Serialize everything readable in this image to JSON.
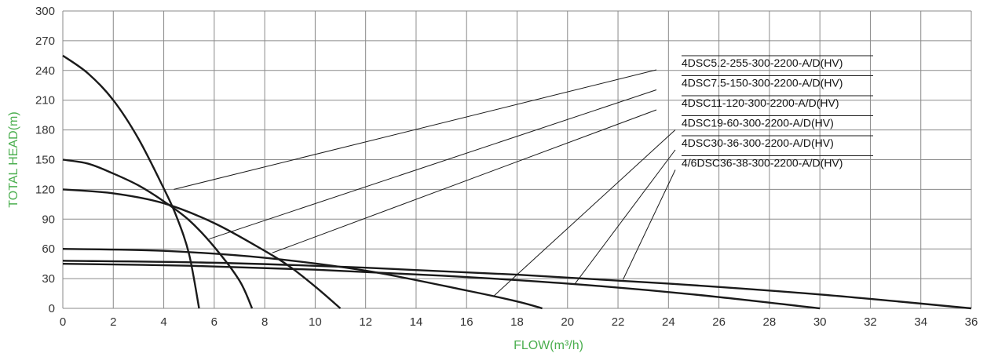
{
  "chart_data": {
    "type": "line",
    "title": "",
    "xlabel": "FLOW(m³/h)",
    "ylabel": "TOTAL HEAD(m)",
    "xlim": [
      0,
      36
    ],
    "ylim": [
      0,
      300
    ],
    "xticks": [
      0,
      2,
      4,
      6,
      8,
      10,
      12,
      14,
      16,
      18,
      20,
      22,
      24,
      26,
      28,
      30,
      32,
      34,
      36
    ],
    "yticks": [
      0,
      30,
      60,
      90,
      120,
      150,
      180,
      210,
      240,
      270,
      300
    ],
    "grid": true,
    "legend_placement": "top-right",
    "axis_label_color": "#4caf50",
    "line_color": "#1a1a1a",
    "series": [
      {
        "name": "4DSC5.2-255-300-2200-A/D(HV)",
        "x": [
          0,
          1,
          2,
          3,
          4,
          4.5,
          5,
          5.4
        ],
        "y": [
          255,
          237,
          210,
          171,
          121,
          93,
          55,
          0
        ],
        "label_at": [
          4.4,
          120
        ]
      },
      {
        "name": "4DSC7.5-150-300-2200-A/D(HV)",
        "x": [
          0,
          1,
          2,
          3,
          4,
          5,
          6,
          7,
          7.5
        ],
        "y": [
          150,
          146,
          136,
          124,
          108,
          89,
          62,
          28,
          0
        ],
        "label_at": [
          5.8,
          70
        ]
      },
      {
        "name": "4DSC11-120-300-2200-A/D(HV)",
        "x": [
          0,
          2,
          4,
          6,
          8,
          9,
          10,
          11
        ],
        "y": [
          120,
          116,
          106,
          86,
          58,
          42,
          22,
          0
        ],
        "label_at": [
          8.3,
          56
        ]
      },
      {
        "name": "4DSC19-60-300-2200-A/D(HV)",
        "x": [
          0,
          4,
          8,
          12,
          16,
          18,
          19
        ],
        "y": [
          60,
          58,
          51,
          38,
          18,
          7,
          0
        ],
        "label_at": [
          17.1,
          13
        ]
      },
      {
        "name": "4DSC30-36-300-2200-A/D(HV)",
        "x": [
          0,
          5,
          10,
          15,
          20,
          25,
          30
        ],
        "y": [
          45,
          43,
          39,
          33,
          25,
          14,
          0
        ],
        "label_at": [
          20.3,
          25
        ]
      },
      {
        "name": "4/6DSC36-38-300-2200-A/D(HV)",
        "x": [
          0,
          6,
          12,
          18,
          24,
          30,
          36
        ],
        "y": [
          48,
          46,
          41,
          34,
          25,
          14,
          0
        ],
        "label_at": [
          22.2,
          29
        ]
      }
    ]
  }
}
